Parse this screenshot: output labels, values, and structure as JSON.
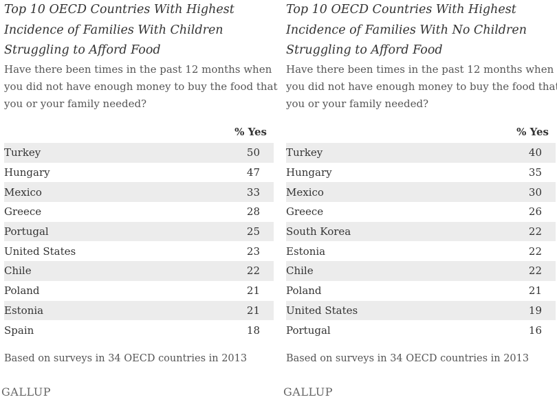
{
  "chart_data": [
    {
      "type": "table",
      "title_lines": [
        "Top 10 OECD Countries With Highest",
        "Incidence of Families With Children",
        "Struggling to Afford Food"
      ],
      "question_lines": [
        "Have there been times in the past 12 months when",
        "you did not have enough money to buy the food that",
        "you or your family needed?"
      ],
      "column_header": "% Yes",
      "rows": [
        {
          "country": "Turkey",
          "value": 50
        },
        {
          "country": "Hungary",
          "value": 47
        },
        {
          "country": "Mexico",
          "value": 33
        },
        {
          "country": "Greece",
          "value": 28
        },
        {
          "country": "Portugal",
          "value": 25
        },
        {
          "country": "United States",
          "value": 23
        },
        {
          "country": "Chile",
          "value": 22
        },
        {
          "country": "Poland",
          "value": 21
        },
        {
          "country": "Estonia",
          "value": 21
        },
        {
          "country": "Spain",
          "value": 18
        }
      ],
      "footnote": "Based on surveys in 34 OECD countries in 2013",
      "logo_text": "GALLUP"
    },
    {
      "type": "table",
      "title_lines": [
        "Top 10 OECD Countries With Highest",
        "Incidence of Families With No Children",
        "Struggling to Afford Food"
      ],
      "question_lines": [
        "Have there been times in the past 12 months when",
        "you did not have enough money to buy the food that",
        "you or your family needed?"
      ],
      "column_header": "% Yes",
      "rows": [
        {
          "country": "Turkey",
          "value": 40
        },
        {
          "country": "Hungary",
          "value": 35
        },
        {
          "country": "Mexico",
          "value": 30
        },
        {
          "country": "Greece",
          "value": 26
        },
        {
          "country": "South Korea",
          "value": 22
        },
        {
          "country": "Estonia",
          "value": 22
        },
        {
          "country": "Chile",
          "value": 22
        },
        {
          "country": "Poland",
          "value": 21
        },
        {
          "country": "United States",
          "value": 19
        },
        {
          "country": "Portugal",
          "value": 16
        }
      ],
      "footnote": "Based on surveys in 34 OECD countries in 2013",
      "logo_text": "GALLUP"
    }
  ],
  "colors": {
    "stripe": "#ececec",
    "text": "#333333",
    "muted": "#555555"
  }
}
